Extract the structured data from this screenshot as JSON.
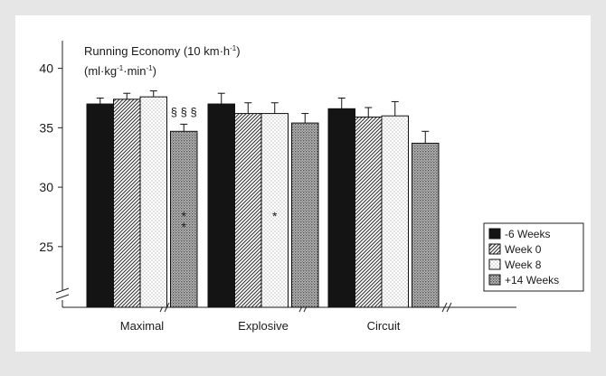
{
  "chart_data": {
    "type": "bar",
    "title_line1": "Running Economy (10 km·h",
    "title_line1_sup": "-1",
    "title_line1_end": ")",
    "title_line2_a": "(ml·kg",
    "title_line2_sup1": "-1",
    "title_line2_b": "·min",
    "title_line2_sup2": "-1",
    "title_line2_end": ")",
    "xlabel": "",
    "ylabel": "",
    "ylim": [
      20,
      42
    ],
    "yticks": [
      25,
      30,
      35,
      40
    ],
    "axis_break": true,
    "categories": [
      "Maximal",
      "Explosive",
      "Circuit"
    ],
    "series": [
      {
        "name": "-6 Weeks",
        "pattern": "solid",
        "values": [
          37.0,
          37.0,
          36.6
        ],
        "errors": [
          0.5,
          0.9,
          0.9
        ]
      },
      {
        "name": "Week 0",
        "pattern": "diagonal",
        "values": [
          37.4,
          36.2,
          35.9
        ],
        "errors": [
          0.5,
          0.9,
          0.8
        ]
      },
      {
        "name": "Week 8",
        "pattern": "dotted-light",
        "values": [
          37.6,
          36.2,
          36.0
        ],
        "errors": [
          0.5,
          0.9,
          1.2
        ]
      },
      {
        "name": "+14 Weeks",
        "pattern": "dotted-dark",
        "values": [
          34.7,
          35.4,
          33.7
        ],
        "errors": [
          0.6,
          0.8,
          1.0
        ]
      }
    ],
    "annotations": [
      {
        "text": "§ § §",
        "category": 0,
        "series": 3,
        "placement": "above"
      },
      {
        "text": "*",
        "category": 0,
        "series": 3,
        "placement": "inside"
      },
      {
        "text": "*",
        "category": 0,
        "series": 3,
        "placement": "inside"
      },
      {
        "text": "*",
        "category": 1,
        "series": 2,
        "placement": "inside"
      }
    ],
    "legend_placement": "right",
    "grid": false
  }
}
